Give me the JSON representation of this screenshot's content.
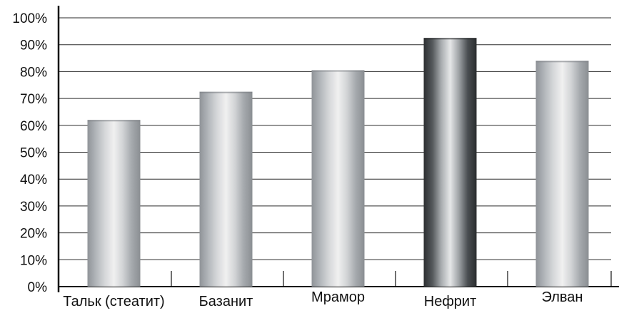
{
  "chart_data": {
    "type": "bar",
    "title": "",
    "xlabel": "",
    "ylabel": "",
    "categories": [
      "Тальк (стеатит)",
      "Базанит",
      "Мрамор",
      "Нефрит",
      "Элван"
    ],
    "values": [
      62,
      72.5,
      80.5,
      92.5,
      84
    ],
    "unit": "%",
    "ylim": [
      0,
      100
    ],
    "yticks": [
      "0%",
      "10%",
      "20%",
      "30%",
      "40%",
      "50%",
      "60%",
      "70%",
      "80%",
      "90%",
      "100%"
    ],
    "grid": true,
    "legend": "none",
    "highlight_category": "Нефрит",
    "colors": {
      "bar_gradient": [
        "#8f9398",
        "#b3b7bb",
        "#d6d8da",
        "#f0f0f0",
        "#d2d4d6",
        "#a6aaae",
        "#8a8e92"
      ],
      "highlight_gradient": [
        "#2c2f31",
        "#55595c",
        "#a9adb0",
        "#e6e7e8",
        "#9ea2a5",
        "#4a4e51",
        "#2a2d2f"
      ],
      "grid": "#2a2a2a",
      "axis": "#111111"
    }
  }
}
